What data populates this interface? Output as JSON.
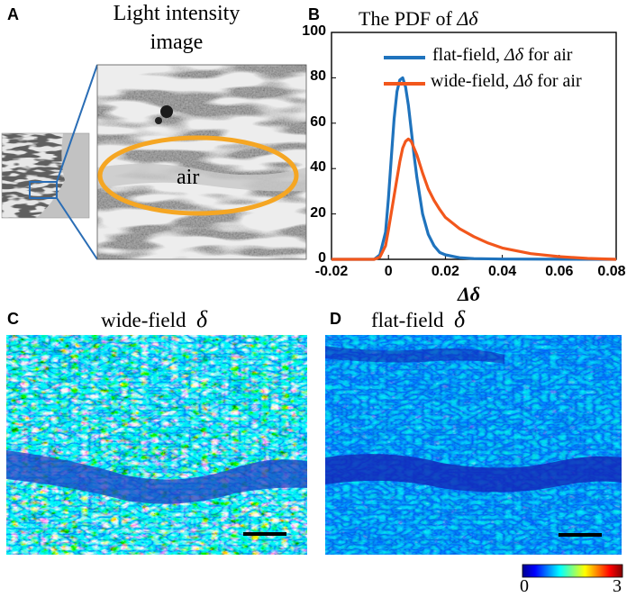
{
  "panel_a": {
    "letter": "A",
    "title_line1": "Light intensity",
    "title_line2": "image",
    "region_label": "air"
  },
  "panel_b": {
    "letter": "B"
  },
  "panel_c": {
    "letter": "C",
    "title": "wide-field",
    "symbol": "δ"
  },
  "panel_d": {
    "letter": "D",
    "title": "flat-field",
    "symbol": "δ"
  },
  "colorbar": {
    "min_label": "0",
    "max_label": "3"
  },
  "colors": {
    "flat_field": "#1f73bd",
    "wide_field": "#f2571c",
    "ellipse": "#f5a623",
    "zoom_lines": "#2a6db5"
  },
  "chart_data": {
    "type": "line",
    "title_prefix": "The PDF of ",
    "title_symbol": "Δδ",
    "xlabel": "Δδ",
    "ylabel": "",
    "xlim": [
      -0.02,
      0.08
    ],
    "ylim": [
      0,
      100
    ],
    "xticks": [
      -0.02,
      0,
      0.02,
      0.04,
      0.06,
      0.08
    ],
    "xtick_labels": [
      "-0.02",
      "0",
      "0.02",
      "0.04",
      "0.06",
      "0.08"
    ],
    "yticks": [
      0,
      20,
      40,
      60,
      80,
      100
    ],
    "ytick_labels": [
      "0",
      "20",
      "40",
      "60",
      "80",
      "100"
    ],
    "legend_position": "top-right",
    "series": [
      {
        "name": "flat-field, Δδ for air",
        "legend_prefix": "flat-field,",
        "legend_symbol": "Δδ",
        "legend_suffix": "for air",
        "x": [
          -0.02,
          -0.005,
          -0.003,
          -0.001,
          0.0,
          0.001,
          0.002,
          0.003,
          0.004,
          0.005,
          0.006,
          0.007,
          0.008,
          0.009,
          0.01,
          0.012,
          0.014,
          0.016,
          0.018,
          0.02,
          0.025,
          0.03,
          0.04,
          0.08
        ],
        "y": [
          0,
          0,
          2,
          12,
          27,
          45,
          62,
          74,
          79,
          80,
          76,
          68,
          57,
          46,
          36,
          20,
          11,
          6,
          3,
          2,
          0.7,
          0.3,
          0.1,
          0
        ]
      },
      {
        "name": "wide-field, Δδ for air",
        "legend_prefix": "wide-field,",
        "legend_symbol": "Δδ",
        "legend_suffix": "for air",
        "x": [
          -0.02,
          -0.005,
          -0.003,
          -0.001,
          0.0,
          0.002,
          0.004,
          0.005,
          0.006,
          0.007,
          0.008,
          0.01,
          0.012,
          0.014,
          0.016,
          0.018,
          0.02,
          0.025,
          0.03,
          0.035,
          0.04,
          0.05,
          0.06,
          0.07,
          0.08
        ],
        "y": [
          0,
          0,
          1,
          6,
          13,
          28,
          43,
          49,
          52,
          53,
          52,
          46,
          38,
          31,
          26,
          22,
          18.5,
          13.5,
          10,
          7.2,
          5,
          2.5,
          1.2,
          0.4,
          0
        ]
      }
    ]
  }
}
